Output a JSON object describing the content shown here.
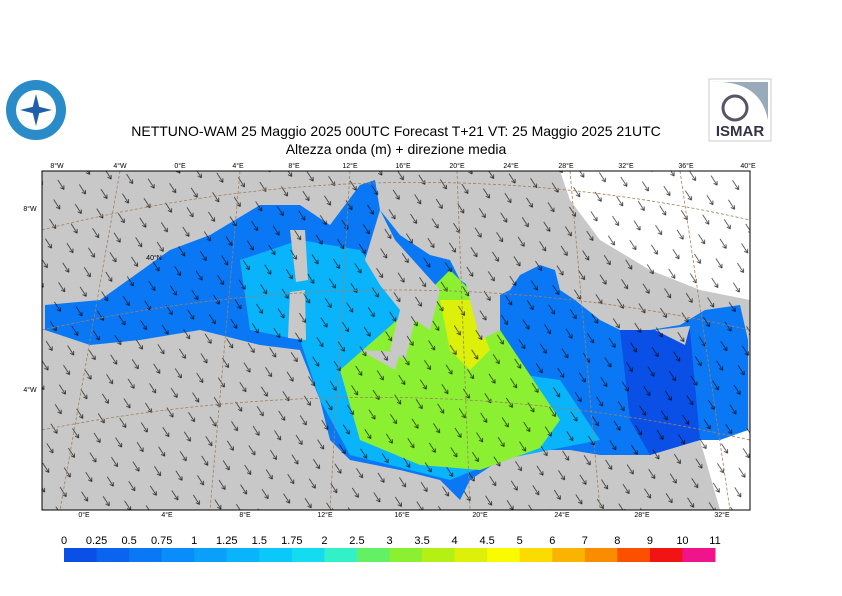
{
  "title": "NETTUNO-WAM 25  Maggio  2025 00UTC Forecast T+21 VT: 25  Maggio  2025 21UTC",
  "subtitle": "Altezza onda (m) + direzione media",
  "logo": "ISMAR",
  "top_lon_labels": [
    "8°W",
    "4°W",
    "0°E",
    "4°E",
    "8°E",
    "12°E",
    "16°E",
    "20°E",
    "24°E",
    "28°E",
    "32°E",
    "36°E",
    "40°E"
  ],
  "bottom_lon_labels": [
    "0°E",
    "4°E",
    "8°E",
    "12°E",
    "16°E",
    "20°E",
    "24°E",
    "28°E",
    "32°E"
  ],
  "side_labels": [
    "8°W",
    "40°N",
    "4°W"
  ],
  "legend": {
    "labels": [
      0,
      0.25,
      0.5,
      0.75,
      1,
      1.25,
      1.5,
      1.75,
      2,
      2.5,
      3,
      3.5,
      4,
      4.5,
      5,
      6,
      7,
      8,
      9,
      10,
      11
    ],
    "colors": [
      "#0a50e6",
      "#0a64f0",
      "#0a78f5",
      "#0a8cfa",
      "#0aa0fa",
      "#0ab4fa",
      "#0ac8fa",
      "#14dcf0",
      "#32f0c8",
      "#64f064",
      "#8cf032",
      "#b4f014",
      "#dcf00a",
      "#fafa00",
      "#fadc00",
      "#fab400",
      "#fa8c00",
      "#fa5000",
      "#f01414",
      "#f0148c"
    ]
  }
}
